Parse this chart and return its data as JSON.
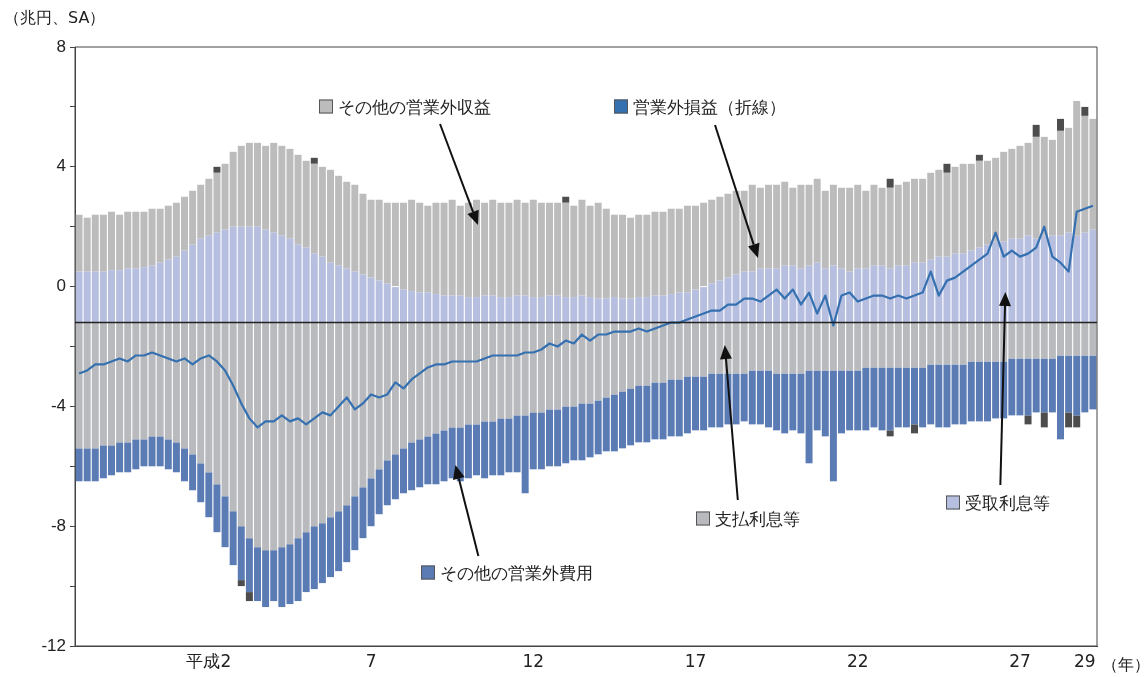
{
  "chart_data": {
    "type": "bar",
    "ylabel": "（兆円、SA）",
    "xlabel": "（年）",
    "categories": [
      null,
      null,
      null,
      null,
      null,
      null,
      null,
      null,
      null,
      null,
      null,
      null,
      null,
      null,
      null,
      null,
      "平成2",
      null,
      null,
      null,
      null,
      null,
      null,
      null,
      null,
      null,
      null,
      null,
      null,
      null,
      null,
      null,
      null,
      null,
      null,
      null,
      "7",
      null,
      null,
      null,
      null,
      null,
      null,
      null,
      null,
      null,
      null,
      null,
      null,
      null,
      null,
      null,
      null,
      null,
      null,
      null,
      "12",
      null,
      null,
      null,
      null,
      null,
      null,
      null,
      null,
      null,
      null,
      null,
      null,
      null,
      null,
      null,
      null,
      null,
      null,
      null,
      "17",
      null,
      null,
      null,
      null,
      null,
      null,
      null,
      null,
      null,
      null,
      null,
      null,
      null,
      null,
      null,
      null,
      null,
      null,
      null,
      "22",
      null,
      null,
      null,
      null,
      null,
      null,
      null,
      null,
      null,
      null,
      null,
      null,
      null,
      null,
      null,
      null,
      null,
      null,
      null,
      "27",
      null,
      null,
      null,
      null,
      null,
      null,
      null,
      "29",
      null
    ],
    "series": [
      {
        "name": "受取利息等",
        "color": "#b6bfdf",
        "base": [
          -1.2,
          -1.2,
          -1.2,
          -1.2,
          -1.2,
          -1.2,
          -1.2,
          -1.2,
          -1.2,
          -1.2,
          -1.2,
          -1.2,
          -1.2,
          -1.2,
          -1.2,
          -1.2,
          -1.2,
          -1.2,
          -1.2,
          -1.2,
          -1.2,
          -1.2,
          -1.2,
          -1.2,
          -1.2,
          -1.2,
          -1.2,
          -1.2,
          -1.2,
          -1.2,
          -1.2,
          -1.2,
          -1.2,
          -1.2,
          -1.2,
          -1.2,
          -1.2,
          -1.2,
          -1.2,
          -1.2,
          -1.2,
          -1.2,
          -1.2,
          -1.2,
          -1.2,
          -1.2,
          -1.2,
          -1.2,
          -1.2,
          -1.2,
          -1.2,
          -1.2,
          -1.2,
          -1.2,
          -1.2,
          -1.2,
          -1.2,
          -1.2,
          -1.2,
          -1.2,
          -1.2,
          -1.2,
          -1.2,
          -1.2,
          -1.2,
          -1.2,
          -1.2,
          -1.2,
          -1.2,
          -1.2,
          -1.2,
          -1.2,
          -1.2,
          -1.2,
          -1.2,
          -1.2,
          -1.2,
          -1.2,
          -1.2,
          -1.2,
          -1.2,
          -1.2,
          -1.2,
          -1.2,
          -1.2,
          -1.2,
          -1.2,
          -1.2,
          -1.2,
          -1.2,
          -1.2,
          -1.2,
          -1.2,
          -1.2,
          -1.2,
          -1.2,
          -1.2,
          -1.2,
          -1.2,
          -1.2,
          -1.2,
          -1.2,
          -1.2,
          -1.2,
          -1.2,
          -1.2,
          -1.2,
          -1.2,
          -1.2,
          -1.2,
          -1.2,
          -1.2,
          -1.2,
          -1.2,
          -1.2,
          -1.2,
          -1.2,
          -1.2,
          -1.2,
          -1.2,
          -1.2,
          -1.2,
          -1.2,
          -1.2,
          -1.2,
          -1.2
        ],
        "values": [
          1.7,
          1.7,
          1.7,
          1.7,
          1.75,
          1.75,
          1.8,
          1.8,
          1.85,
          1.9,
          2.0,
          2.1,
          2.2,
          2.4,
          2.6,
          2.8,
          2.9,
          3.0,
          3.1,
          3.2,
          3.2,
          3.2,
          3.2,
          3.1,
          3.0,
          2.9,
          2.8,
          2.6,
          2.5,
          2.3,
          2.2,
          2.0,
          1.9,
          1.8,
          1.7,
          1.6,
          1.5,
          1.4,
          1.3,
          1.2,
          1.1,
          1.05,
          1.0,
          1.0,
          0.95,
          0.9,
          0.9,
          0.9,
          0.85,
          0.85,
          0.9,
          0.9,
          0.85,
          0.85,
          0.9,
          0.9,
          0.85,
          0.85,
          0.9,
          0.9,
          0.85,
          0.85,
          0.9,
          0.85,
          0.8,
          0.8,
          0.85,
          0.8,
          0.8,
          0.85,
          0.85,
          0.9,
          0.9,
          0.95,
          1.0,
          1.0,
          1.1,
          1.2,
          1.3,
          1.4,
          1.5,
          1.6,
          1.7,
          1.7,
          1.8,
          1.8,
          1.8,
          1.9,
          1.9,
          1.8,
          1.9,
          2.0,
          1.8,
          1.9,
          1.8,
          1.7,
          1.8,
          1.8,
          1.9,
          1.9,
          1.8,
          1.9,
          1.9,
          2.0,
          2.0,
          2.1,
          2.2,
          2.2,
          2.3,
          2.3,
          2.4,
          2.5,
          2.6,
          2.7,
          2.7,
          2.8,
          2.8,
          2.9,
          2.8,
          2.9,
          2.9,
          2.9,
          3.0,
          2.9,
          3.0,
          3.1
        ]
      },
      {
        "name": "その他の営業外収益",
        "color": "#bcbcbc",
        "base": [
          0.5,
          0.5,
          0.5,
          0.5,
          0.55,
          0.55,
          0.6,
          0.6,
          0.65,
          0.7,
          0.8,
          0.9,
          1.0,
          1.2,
          1.4,
          1.6,
          1.7,
          1.8,
          1.9,
          2.0,
          2.0,
          2.0,
          2.0,
          1.9,
          1.8,
          1.7,
          1.6,
          1.4,
          1.3,
          1.1,
          1.0,
          0.8,
          0.7,
          0.6,
          0.5,
          0.4,
          0.3,
          0.2,
          0.1,
          0,
          -0.1,
          -0.15,
          -0.2,
          -0.2,
          -0.25,
          -0.3,
          -0.3,
          -0.3,
          -0.35,
          -0.35,
          -0.3,
          -0.3,
          -0.35,
          -0.35,
          -0.3,
          -0.3,
          -0.35,
          -0.35,
          -0.3,
          -0.3,
          -0.35,
          -0.35,
          -0.3,
          -0.35,
          -0.4,
          -0.4,
          -0.35,
          -0.4,
          -0.4,
          -0.35,
          -0.35,
          -0.3,
          -0.3,
          -0.25,
          -0.2,
          -0.2,
          -0.1,
          0,
          0.1,
          0.2,
          0.3,
          0.4,
          0.5,
          0.5,
          0.6,
          0.6,
          0.6,
          0.7,
          0.7,
          0.6,
          0.7,
          0.8,
          0.6,
          0.7,
          0.6,
          0.5,
          0.6,
          0.6,
          0.7,
          0.7,
          0.6,
          0.7,
          0.7,
          0.8,
          0.8,
          0.9,
          1.0,
          1.0,
          1.1,
          1.1,
          1.2,
          1.3,
          1.4,
          1.5,
          1.5,
          1.6,
          1.6,
          1.7,
          1.6,
          1.7,
          1.7,
          1.7,
          1.8,
          1.7,
          1.8,
          1.9
        ],
        "values": [
          1.9,
          1.8,
          1.9,
          1.9,
          1.95,
          1.85,
          1.9,
          1.9,
          1.85,
          1.9,
          1.8,
          1.8,
          1.8,
          1.8,
          1.8,
          1.8,
          1.9,
          2.0,
          2.2,
          2.5,
          2.7,
          2.8,
          2.8,
          2.8,
          3.0,
          3.0,
          3.0,
          3.0,
          2.9,
          3.0,
          3.0,
          3.1,
          3.0,
          2.9,
          2.9,
          2.7,
          2.6,
          2.7,
          2.7,
          2.8,
          2.9,
          3.05,
          3.0,
          2.9,
          3.05,
          3.1,
          3.2,
          3.0,
          3.15,
          3.25,
          3.1,
          3.2,
          3.15,
          3.15,
          3.2,
          3.1,
          3.25,
          3.15,
          3.1,
          3.1,
          3.15,
          3.05,
          3.2,
          3.05,
          3.2,
          3.0,
          2.75,
          2.8,
          2.7,
          2.75,
          2.75,
          2.8,
          2.8,
          2.85,
          2.8,
          2.9,
          2.8,
          2.8,
          2.8,
          2.8,
          2.8,
          2.8,
          2.7,
          2.9,
          2.7,
          2.8,
          2.8,
          2.8,
          2.6,
          2.8,
          2.7,
          2.8,
          2.6,
          2.7,
          2.7,
          2.8,
          2.8,
          2.6,
          2.7,
          2.6,
          2.7,
          2.7,
          2.8,
          2.8,
          2.8,
          2.9,
          2.9,
          2.8,
          2.9,
          3.0,
          2.9,
          2.9,
          2.8,
          2.8,
          3.0,
          3.0,
          3.1,
          3.1,
          3.4,
          3.3,
          3.2,
          3.5,
          3.5,
          4.5,
          3.9,
          3.7
        ]
      },
      {
        "color": "#4d4d4d",
        "base": [
          null,
          null,
          null,
          null,
          null,
          null,
          null,
          null,
          null,
          null,
          null,
          null,
          null,
          null,
          null,
          null,
          null,
          3.8,
          null,
          null,
          null,
          null,
          null,
          null,
          null,
          null,
          null,
          null,
          null,
          4.1,
          null,
          null,
          null,
          null,
          null,
          null,
          null,
          null,
          null,
          null,
          null,
          null,
          null,
          null,
          null,
          null,
          null,
          null,
          null,
          null,
          null,
          null,
          null,
          null,
          null,
          null,
          null,
          null,
          null,
          null,
          2.8,
          null,
          null,
          null,
          null,
          null,
          null,
          null,
          null,
          null,
          null,
          null,
          null,
          null,
          null,
          null,
          null,
          null,
          null,
          null,
          null,
          null,
          null,
          null,
          null,
          null,
          null,
          null,
          null,
          null,
          null,
          null,
          null,
          null,
          null,
          null,
          null,
          null,
          null,
          null,
          3.3,
          null,
          null,
          null,
          null,
          null,
          null,
          3.8,
          null,
          null,
          null,
          4.2,
          null,
          null,
          null,
          null,
          null,
          null,
          5.0,
          null,
          null,
          5.2,
          null,
          null,
          5.7,
          null
        ],
        "values": [
          null,
          null,
          null,
          null,
          null,
          null,
          null,
          null,
          null,
          null,
          null,
          null,
          null,
          null,
          null,
          null,
          null,
          0.2,
          null,
          null,
          null,
          null,
          null,
          null,
          null,
          null,
          null,
          null,
          null,
          0.2,
          null,
          null,
          null,
          null,
          null,
          null,
          null,
          null,
          null,
          null,
          null,
          null,
          null,
          null,
          null,
          null,
          null,
          null,
          null,
          null,
          null,
          null,
          null,
          null,
          null,
          null,
          null,
          null,
          null,
          null,
          0.2,
          null,
          null,
          null,
          null,
          null,
          null,
          null,
          null,
          null,
          null,
          null,
          null,
          null,
          null,
          null,
          null,
          null,
          null,
          null,
          null,
          null,
          null,
          null,
          null,
          null,
          null,
          null,
          null,
          null,
          null,
          null,
          null,
          null,
          null,
          null,
          null,
          null,
          null,
          null,
          0.3,
          null,
          null,
          null,
          null,
          null,
          null,
          0.3,
          null,
          null,
          null,
          0.2,
          null,
          null,
          null,
          null,
          null,
          null,
          0.4,
          null,
          null,
          0.4,
          null,
          null,
          0.3,
          null
        ]
      },
      {
        "name": "支払利息等",
        "color": "#b9babd",
        "base": [
          -1.2,
          -1.2,
          -1.2,
          -1.2,
          -1.2,
          -1.2,
          -1.2,
          -1.2,
          -1.2,
          -1.2,
          -1.2,
          -1.2,
          -1.2,
          -1.2,
          -1.2,
          -1.2,
          -1.2,
          -1.2,
          -1.2,
          -1.2,
          -1.2,
          -1.2,
          -1.2,
          -1.2,
          -1.2,
          -1.2,
          -1.2,
          -1.2,
          -1.2,
          -1.2,
          -1.2,
          -1.2,
          -1.2,
          -1.2,
          -1.2,
          -1.2,
          -1.2,
          -1.2,
          -1.2,
          -1.2,
          -1.2,
          -1.2,
          -1.2,
          -1.2,
          -1.2,
          -1.2,
          -1.2,
          -1.2,
          -1.2,
          -1.2,
          -1.2,
          -1.2,
          -1.2,
          -1.2,
          -1.2,
          -1.2,
          -1.2,
          -1.2,
          -1.2,
          -1.2,
          -1.2,
          -1.2,
          -1.2,
          -1.2,
          -1.2,
          -1.2,
          -1.2,
          -1.2,
          -1.2,
          -1.2,
          -1.2,
          -1.2,
          -1.2,
          -1.2,
          -1.2,
          -1.2,
          -1.2,
          -1.2,
          -1.2,
          -1.2,
          -1.2,
          -1.2,
          -1.2,
          -1.2,
          -1.2,
          -1.2,
          -1.2,
          -1.2,
          -1.2,
          -1.2,
          -1.2,
          -1.2,
          -1.2,
          -1.2,
          -1.2,
          -1.2,
          -1.2,
          -1.2,
          -1.2,
          -1.2,
          -1.2,
          -1.2,
          -1.2,
          -1.2,
          -1.2,
          -1.2,
          -1.2,
          -1.2,
          -1.2,
          -1.2,
          -1.2,
          -1.2,
          -1.2,
          -1.2,
          -1.2,
          -1.2,
          -1.2,
          -1.2,
          -1.2,
          -1.2,
          -1.2,
          -1.2,
          -1.2,
          -1.2,
          -1.2,
          -1.2
        ],
        "values": [
          -4.2,
          -4.2,
          -4.2,
          -4.1,
          -4.1,
          -4.0,
          -4.0,
          -3.9,
          -3.9,
          -3.8,
          -3.8,
          -3.9,
          -4.0,
          -4.2,
          -4.4,
          -4.7,
          -5.0,
          -5.4,
          -5.8,
          -6.3,
          -6.8,
          -7.2,
          -7.5,
          -7.6,
          -7.6,
          -7.5,
          -7.4,
          -7.2,
          -7.0,
          -6.8,
          -6.7,
          -6.5,
          -6.3,
          -6.1,
          -5.8,
          -5.5,
          -5.2,
          -4.9,
          -4.6,
          -4.4,
          -4.2,
          -4.0,
          -3.9,
          -3.8,
          -3.7,
          -3.6,
          -3.5,
          -3.5,
          -3.4,
          -3.4,
          -3.3,
          -3.3,
          -3.2,
          -3.2,
          -3.1,
          -3.1,
          -3.0,
          -3.0,
          -2.9,
          -2.9,
          -2.8,
          -2.8,
          -2.7,
          -2.7,
          -2.6,
          -2.5,
          -2.4,
          -2.3,
          -2.2,
          -2.1,
          -2.1,
          -2.0,
          -2.0,
          -1.9,
          -1.9,
          -1.8,
          -1.8,
          -1.8,
          -1.7,
          -1.7,
          -1.7,
          -1.7,
          -1.7,
          -1.6,
          -1.6,
          -1.6,
          -1.7,
          -1.7,
          -1.7,
          -1.7,
          -1.6,
          -1.6,
          -1.6,
          -1.6,
          -1.6,
          -1.6,
          -1.6,
          -1.5,
          -1.5,
          -1.5,
          -1.5,
          -1.5,
          -1.5,
          -1.5,
          -1.5,
          -1.4,
          -1.4,
          -1.4,
          -1.4,
          -1.4,
          -1.3,
          -1.3,
          -1.3,
          -1.3,
          -1.3,
          -1.2,
          -1.2,
          -1.2,
          -1.2,
          -1.2,
          -1.2,
          -1.1,
          -1.1,
          -1.1,
          -1.1,
          -1.1
        ]
      },
      {
        "name": "その他の営業外費用",
        "color": "#5b7bb5",
        "base": [
          -5.4,
          -5.4,
          -5.4,
          -5.3,
          -5.3,
          -5.2,
          -5.2,
          -5.1,
          -5.1,
          -5.0,
          -5.0,
          -5.1,
          -5.2,
          -5.4,
          -5.6,
          -5.9,
          -6.2,
          -6.6,
          -7.0,
          -7.5,
          -8.0,
          -8.4,
          -8.7,
          -8.8,
          -8.8,
          -8.7,
          -8.6,
          -8.4,
          -8.2,
          -8.0,
          -7.9,
          -7.7,
          -7.5,
          -7.3,
          -7.0,
          -6.7,
          -6.4,
          -6.1,
          -5.8,
          -5.6,
          -5.4,
          -5.2,
          -5.1,
          -5.0,
          -4.9,
          -4.8,
          -4.7,
          -4.7,
          -4.6,
          -4.6,
          -4.5,
          -4.5,
          -4.4,
          -4.4,
          -4.3,
          -4.3,
          -4.2,
          -4.2,
          -4.1,
          -4.1,
          -4.0,
          -4.0,
          -3.9,
          -3.9,
          -3.8,
          -3.7,
          -3.6,
          -3.5,
          -3.4,
          -3.3,
          -3.3,
          -3.2,
          -3.2,
          -3.1,
          -3.1,
          -3.0,
          -3.0,
          -3.0,
          -2.9,
          -2.9,
          -2.9,
          -2.9,
          -2.9,
          -2.8,
          -2.8,
          -2.8,
          -2.9,
          -2.9,
          -2.9,
          -2.9,
          -2.8,
          -2.8,
          -2.8,
          -2.8,
          -2.8,
          -2.8,
          -2.8,
          -2.7,
          -2.7,
          -2.7,
          -2.7,
          -2.7,
          -2.7,
          -2.7,
          -2.7,
          -2.6,
          -2.6,
          -2.6,
          -2.6,
          -2.6,
          -2.5,
          -2.5,
          -2.5,
          -2.5,
          -2.5,
          -2.4,
          -2.4,
          -2.4,
          -2.4,
          -2.4,
          -2.4,
          -2.3,
          -2.3,
          -2.3,
          -2.3,
          -2.3
        ],
        "values": [
          -1.1,
          -1.1,
          -1.1,
          -1.1,
          -1.0,
          -1.0,
          -1.0,
          -1.0,
          -0.9,
          -1.0,
          -1.0,
          -1.0,
          -1.0,
          -1.1,
          -1.2,
          -1.3,
          -1.5,
          -1.6,
          -1.7,
          -1.8,
          -1.8,
          -1.8,
          -1.8,
          -1.9,
          -1.7,
          -2.0,
          -2.0,
          -2.1,
          -2.0,
          -2.1,
          -2.0,
          -2.0,
          -2.0,
          -1.9,
          -1.8,
          -1.7,
          -1.6,
          -1.5,
          -1.5,
          -1.5,
          -1.5,
          -1.6,
          -1.6,
          -1.6,
          -1.7,
          -1.7,
          -1.7,
          -1.8,
          -1.8,
          -1.7,
          -1.9,
          -1.8,
          -1.9,
          -1.8,
          -1.9,
          -2.6,
          -1.9,
          -1.9,
          -1.9,
          -1.9,
          -1.9,
          -1.8,
          -1.9,
          -1.8,
          -1.8,
          -1.8,
          -1.9,
          -1.9,
          -1.9,
          -1.9,
          -1.9,
          -1.9,
          -1.9,
          -1.9,
          -1.9,
          -1.9,
          -1.8,
          -1.8,
          -1.8,
          -1.8,
          -1.7,
          -1.7,
          -1.6,
          -1.8,
          -1.8,
          -1.9,
          -1.9,
          -2.0,
          -1.9,
          -2.0,
          -3.1,
          -2.0,
          -2.2,
          -3.7,
          -2.1,
          -2.0,
          -2.0,
          -2.1,
          -2.0,
          -2.1,
          -2.1,
          -2.0,
          -2.0,
          -1.9,
          -2.0,
          -2.0,
          -2.1,
          -2.1,
          -2.0,
          -2.0,
          -2.0,
          -2.0,
          -2.0,
          -1.9,
          -1.9,
          -1.9,
          -1.9,
          -1.9,
          -1.8,
          -1.8,
          -1.8,
          -2.8,
          -1.9,
          -2.0,
          -1.9,
          -1.8
        ]
      },
      {
        "color": "#4d4d4d",
        "base": [
          null,
          null,
          null,
          null,
          null,
          null,
          null,
          null,
          null,
          null,
          null,
          null,
          null,
          null,
          null,
          null,
          null,
          null,
          null,
          null,
          -9.8,
          -10.2,
          null,
          null,
          null,
          null,
          null,
          null,
          null,
          null,
          null,
          null,
          null,
          null,
          null,
          null,
          null,
          null,
          null,
          null,
          null,
          null,
          null,
          null,
          null,
          null,
          null,
          null,
          null,
          null,
          null,
          null,
          null,
          null,
          null,
          null,
          null,
          null,
          null,
          null,
          null,
          null,
          null,
          null,
          null,
          null,
          null,
          null,
          null,
          null,
          null,
          null,
          null,
          null,
          null,
          null,
          null,
          null,
          null,
          null,
          null,
          null,
          null,
          null,
          null,
          null,
          null,
          null,
          null,
          null,
          null,
          null,
          null,
          null,
          null,
          null,
          null,
          null,
          null,
          null,
          -4.8,
          null,
          null,
          -4.6,
          null,
          null,
          null,
          null,
          null,
          null,
          null,
          null,
          null,
          null,
          null,
          null,
          null,
          -4.3,
          null,
          -4.2,
          null,
          null,
          -4.2,
          -4.3,
          null,
          null
        ],
        "values": [
          null,
          null,
          null,
          null,
          null,
          null,
          null,
          null,
          null,
          null,
          null,
          null,
          null,
          null,
          null,
          null,
          null,
          null,
          null,
          null,
          -0.2,
          -0.3,
          null,
          null,
          null,
          null,
          null,
          null,
          null,
          null,
          null,
          null,
          null,
          null,
          null,
          null,
          null,
          null,
          null,
          null,
          null,
          null,
          null,
          null,
          null,
          null,
          null,
          null,
          null,
          null,
          null,
          null,
          null,
          null,
          null,
          null,
          null,
          null,
          null,
          null,
          null,
          null,
          null,
          null,
          null,
          null,
          null,
          null,
          null,
          null,
          null,
          null,
          null,
          null,
          null,
          null,
          null,
          null,
          null,
          null,
          null,
          null,
          null,
          null,
          null,
          null,
          null,
          null,
          null,
          null,
          null,
          null,
          null,
          null,
          null,
          null,
          null,
          null,
          null,
          null,
          -0.2,
          null,
          null,
          -0.3,
          null,
          null,
          null,
          null,
          null,
          null,
          null,
          null,
          null,
          null,
          null,
          null,
          null,
          -0.3,
          null,
          -0.5,
          null,
          null,
          -0.5,
          -0.4,
          null,
          null
        ]
      },
      {
        "name": "営業外損益（折線）",
        "type": "line",
        "color": "#3570b0",
        "values": [
          -2.9,
          -2.8,
          -2.6,
          -2.6,
          -2.5,
          -2.4,
          -2.5,
          -2.3,
          -2.3,
          -2.2,
          -2.3,
          -2.4,
          -2.5,
          -2.4,
          -2.6,
          -2.4,
          -2.3,
          -2.5,
          -2.8,
          -3.3,
          -3.9,
          -4.4,
          -4.7,
          -4.5,
          -4.5,
          -4.3,
          -4.5,
          -4.4,
          -4.6,
          -4.4,
          -4.2,
          -4.3,
          -4.0,
          -3.7,
          -4.1,
          -3.9,
          -3.6,
          -3.7,
          -3.6,
          -3.2,
          -3.4,
          -3.1,
          -2.9,
          -2.7,
          -2.6,
          -2.6,
          -2.5,
          -2.5,
          -2.5,
          -2.5,
          -2.4,
          -2.3,
          -2.3,
          -2.3,
          -2.3,
          -2.2,
          -2.2,
          -2.1,
          -1.9,
          -2.0,
          -1.8,
          -1.9,
          -1.6,
          -1.8,
          -1.6,
          -1.6,
          -1.5,
          -1.5,
          -1.5,
          -1.4,
          -1.5,
          -1.4,
          -1.3,
          -1.2,
          -1.2,
          -1.1,
          -1.0,
          -0.9,
          -0.8,
          -0.8,
          -0.6,
          -0.6,
          -0.4,
          -0.4,
          -0.5,
          -0.3,
          -0.1,
          -0.4,
          -0.1,
          -0.6,
          -0.2,
          -0.9,
          -0.3,
          -1.3,
          -0.3,
          -0.2,
          -0.5,
          -0.4,
          -0.3,
          -0.3,
          -0.4,
          -0.3,
          -0.4,
          -0.3,
          -0.2,
          0.5,
          -0.3,
          0.2,
          0.3,
          0.5,
          0.7,
          0.9,
          1.1,
          1.8,
          1.0,
          1.2,
          1.0,
          1.1,
          1.3,
          2.0,
          1.0,
          0.8,
          0.5,
          2.5,
          2.6,
          2.7
        ]
      }
    ],
    "ref_lines": [
      {
        "axis": "y",
        "value": -1.2,
        "color": "#222222"
      }
    ],
    "ylim": [
      -12,
      8
    ],
    "yticks": [
      -12,
      {
        "value": -10,
        "label": null
      },
      -8,
      {
        "value": -6,
        "label": null
      },
      -4,
      {
        "value": -2,
        "label": null
      },
      0,
      {
        "value": 2,
        "label": null
      },
      4,
      {
        "value": 6,
        "label": null
      },
      8
    ],
    "grid": false,
    "legend": "top",
    "marker": "none",
    "line_style": "solid"
  }
}
